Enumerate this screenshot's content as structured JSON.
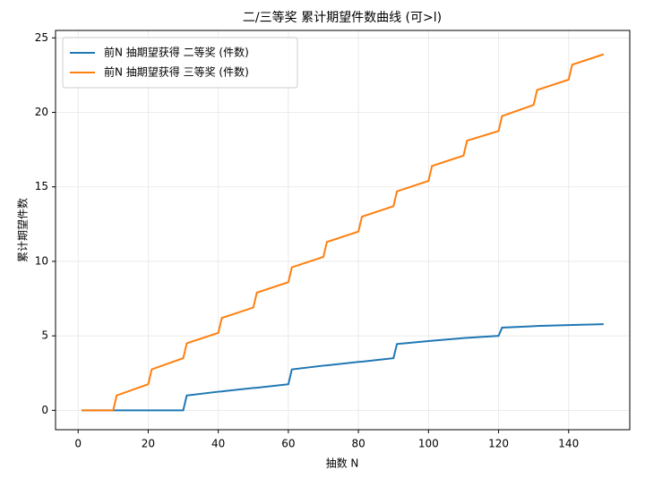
{
  "chart_data": {
    "type": "line",
    "title": "二/三等奖 累计期望件数曲线 (可>l)",
    "xlabel": "抽数 N",
    "ylabel": "累计期望件数",
    "x": [
      1,
      10,
      11,
      20,
      21,
      30,
      31,
      40,
      41,
      50,
      51,
      60,
      61,
      70,
      71,
      80,
      81,
      90,
      91,
      100,
      101,
      110,
      111,
      120,
      121,
      130,
      131,
      140,
      141,
      150
    ],
    "series": [
      {
        "name": "前N 抽期望获得 二等奖 (件数)",
        "color": "#1f77b4",
        "values": [
          0,
          0,
          0,
          0,
          0,
          0,
          1.0,
          1.25,
          1.27,
          1.5,
          1.52,
          1.75,
          2.75,
          3.0,
          3.02,
          3.25,
          3.27,
          3.5,
          4.45,
          4.65,
          4.67,
          4.85,
          4.87,
          5.0,
          5.55,
          5.65,
          5.66,
          5.72,
          5.73,
          5.78
        ]
      },
      {
        "name": "前N 抽期望获得 三等奖 (件数)",
        "color": "#ff7f0e",
        "values": [
          0,
          0,
          1.0,
          1.75,
          2.75,
          3.5,
          4.5,
          5.2,
          6.2,
          6.9,
          7.9,
          8.6,
          9.6,
          10.3,
          11.3,
          12.0,
          13.0,
          13.7,
          14.7,
          15.4,
          16.4,
          17.1,
          18.1,
          18.75,
          19.75,
          20.5,
          21.5,
          22.2,
          23.2,
          23.9
        ]
      }
    ],
    "xlim": [
      -6.45,
      157.45
    ],
    "xticks": [
      0,
      20,
      40,
      60,
      80,
      100,
      120,
      140
    ],
    "ylim": [
      -1.3,
      25.5
    ],
    "yticks": [
      0,
      5,
      10,
      15,
      20,
      25
    ],
    "grid": true,
    "legend": "upper left"
  }
}
